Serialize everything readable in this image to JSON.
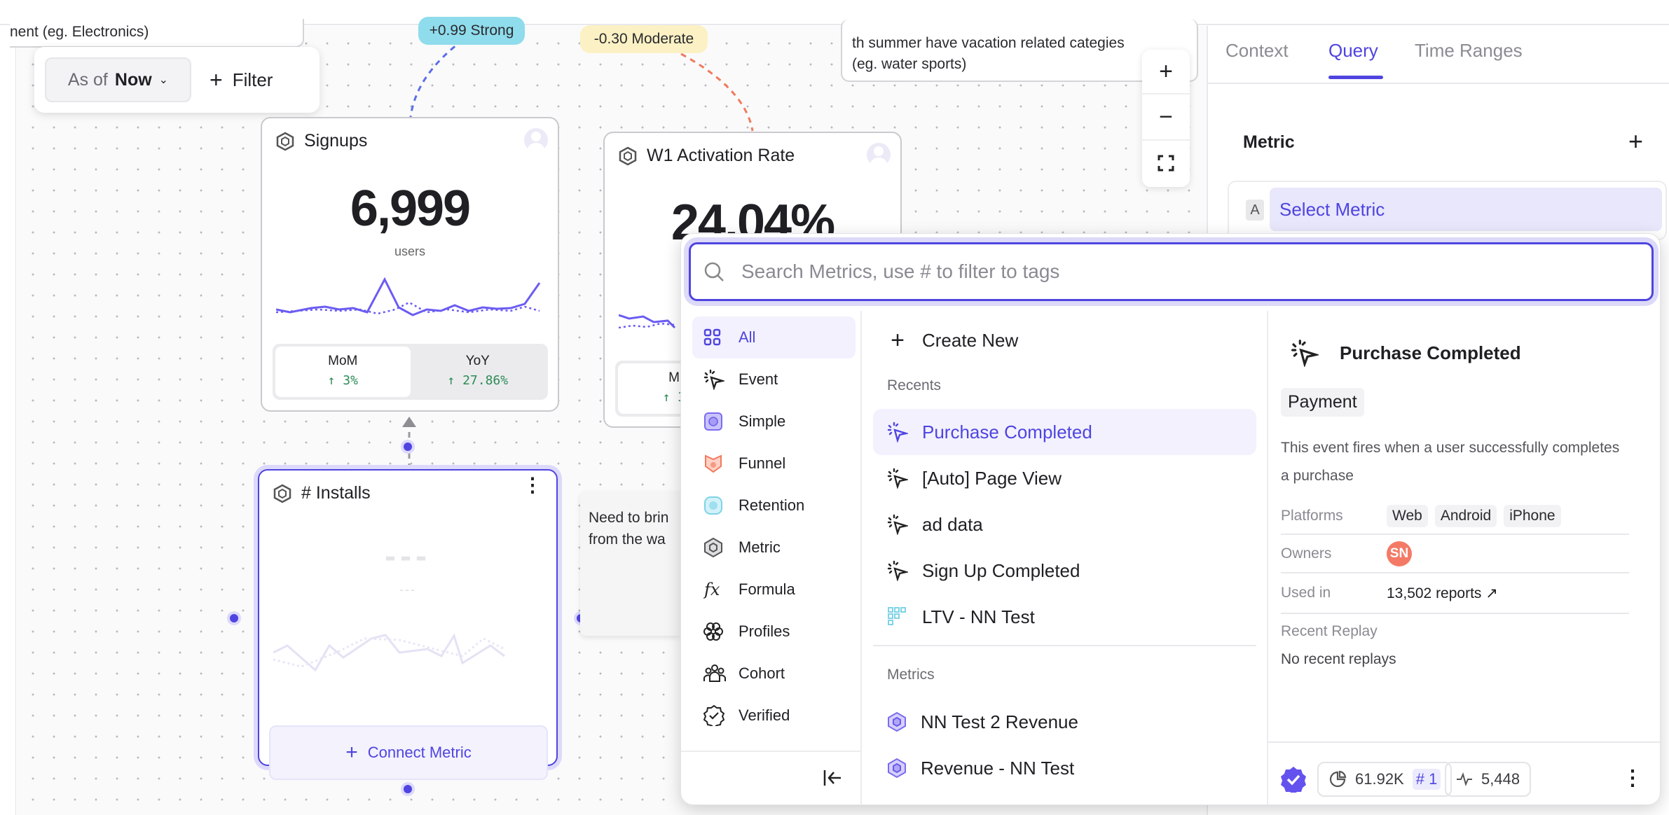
{
  "canvas": {
    "note_top_left": "nent  (eg. Electronics)",
    "note_top_right": [
      "th summer have vacation related categies",
      "(eg. water sports)"
    ],
    "note_middle": [
      "Need to brin",
      "from the wa"
    ],
    "filter_bar": {
      "as_of_label": "As of",
      "as_of_value": "Now",
      "filter_label": "Filter"
    },
    "correlations": [
      {
        "label": "+0.99 Strong",
        "color": "#8fdcec"
      },
      {
        "label": "-0.30 Moderate",
        "color": "#fbf1c4"
      }
    ],
    "cards": {
      "signups": {
        "title": "Signups",
        "value": "6,999",
        "unit": "users",
        "mom_label": "MoM",
        "mom_value": "↑ 3%",
        "yoy_label": "YoY",
        "yoy_value": "↑ 27.86%"
      },
      "activation": {
        "title": "W1 Activation Rate",
        "value": "24.04%",
        "mom_label": "M",
        "mom_value": "↑ 3"
      },
      "installs": {
        "title": "# Installs",
        "placeholder_value": "---",
        "placeholder_sub": "---",
        "connect_label": "Connect Metric"
      }
    },
    "zoom_controls": {
      "zoom_in": "+",
      "zoom_out": "−"
    }
  },
  "panel": {
    "tabs": [
      {
        "label": "Context"
      },
      {
        "label": "Query",
        "active": true
      },
      {
        "label": "Time Ranges"
      }
    ],
    "metric_heading": "Metric",
    "add_label": "+",
    "metric_slot_letter": "A",
    "metric_slot_text": "Select Metric"
  },
  "popup": {
    "search_placeholder": "Search Metrics, use # to filter to tags",
    "categories": [
      {
        "label": "All",
        "icon": "grid-icon",
        "active": true
      },
      {
        "label": "Event",
        "icon": "cursor-click-icon"
      },
      {
        "label": "Simple",
        "icon": "simple-metric-icon"
      },
      {
        "label": "Funnel",
        "icon": "funnel-icon"
      },
      {
        "label": "Retention",
        "icon": "retention-icon"
      },
      {
        "label": "Metric",
        "icon": "hexagon-icon"
      },
      {
        "label": "Formula",
        "icon": "fx-icon"
      },
      {
        "label": "Profiles",
        "icon": "profiles-icon"
      },
      {
        "label": "Cohort",
        "icon": "cohort-icon"
      },
      {
        "label": "Verified",
        "icon": "verified-icon"
      }
    ],
    "create_new": "Create New",
    "recents_label": "Recents",
    "recents": [
      {
        "label": "Purchase Completed",
        "icon": "cursor-click-icon",
        "selected": true
      },
      {
        "label": "[Auto] Page View",
        "icon": "cursor-click-icon"
      },
      {
        "label": "ad data",
        "icon": "cursor-click-icon"
      },
      {
        "label": "Sign Up Completed",
        "icon": "cursor-click-icon"
      },
      {
        "label": "LTV - NN Test",
        "icon": "retention-grid-icon"
      }
    ],
    "metrics_label": "Metrics",
    "metrics": [
      {
        "label": "NN Test 2 Revenue",
        "icon": "hexagon-icon"
      },
      {
        "label": "Revenue - NN Test",
        "icon": "hexagon-icon"
      }
    ],
    "detail": {
      "title": "Purchase Completed",
      "tag": "Payment",
      "description": "This event fires when a user successfully completes a purchase",
      "platforms_label": "Platforms",
      "platforms": [
        "Web",
        "Android",
        "iPhone"
      ],
      "owners_label": "Owners",
      "owner_initials": "SN",
      "owner_color": "#f47a66",
      "used_in_label": "Used in",
      "used_in_value": "13,502 reports ↗",
      "recent_replay_label": "Recent Replay",
      "recent_replay_value": "No recent replays",
      "footer": {
        "views": "61.92K",
        "rank": "# 1",
        "activity": "5,448"
      }
    }
  },
  "colors": {
    "accent": "#4f44e0",
    "accent_soft": "#f2f1fd",
    "positive": "#2e8b57"
  }
}
